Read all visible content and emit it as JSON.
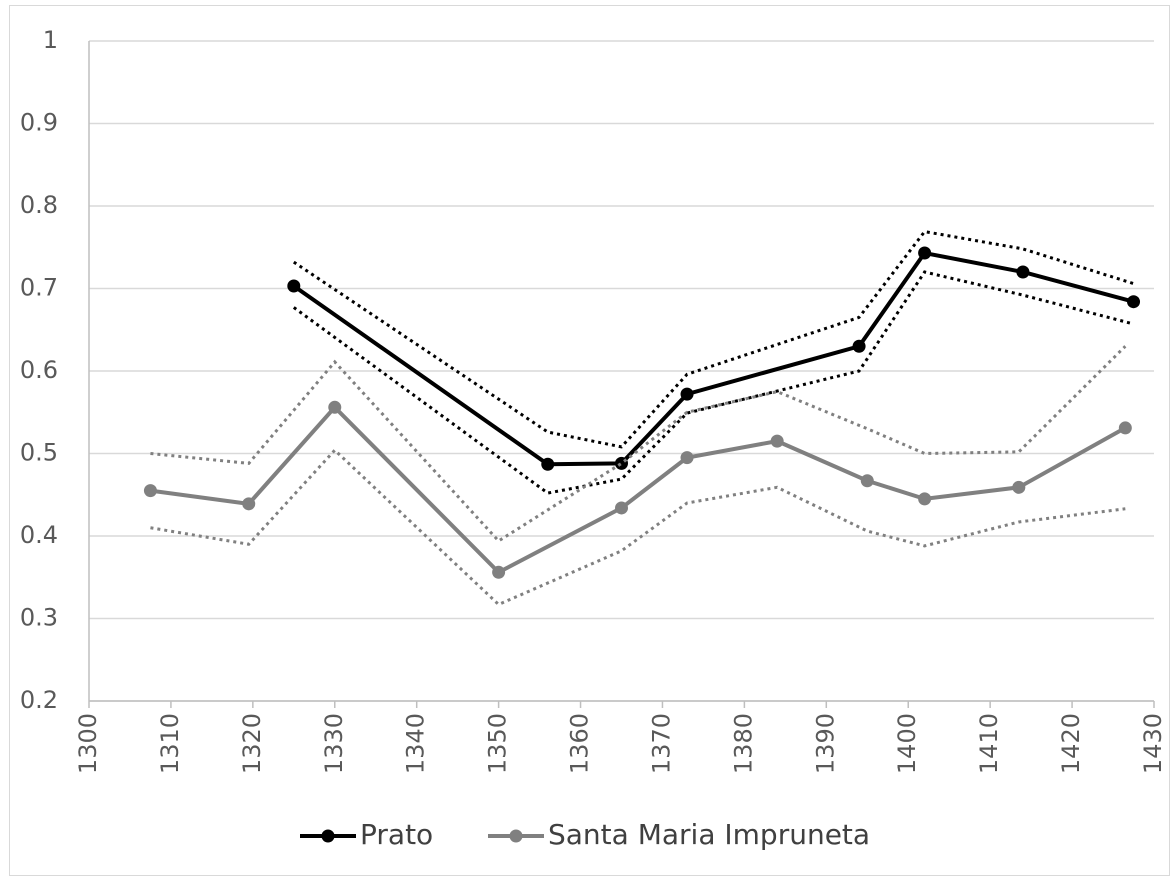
{
  "chart_data": {
    "type": "line",
    "xlim": [
      1300,
      1430
    ],
    "xticks": [
      1300,
      1310,
      1320,
      1330,
      1340,
      1350,
      1360,
      1370,
      1380,
      1390,
      1400,
      1410,
      1420,
      1430
    ],
    "ylim": [
      0.2,
      1
    ],
    "yticks": [
      0.2,
      0.3,
      0.4,
      0.5,
      0.6,
      0.7,
      0.8,
      0.9,
      1
    ],
    "grid": true,
    "legend": "bottom",
    "series": [
      {
        "name": "Prato",
        "color": "#000000",
        "x": [
          1325,
          1356,
          1365,
          1373,
          1394,
          1402,
          1414,
          1427.5
        ],
        "values": [
          0.703,
          0.487,
          0.488,
          0.572,
          0.63,
          0.743,
          0.72,
          0.684
        ],
        "upper": [
          0.732,
          0.526,
          0.508,
          0.596,
          0.665,
          0.769,
          0.748,
          0.706
        ],
        "lower": [
          0.677,
          0.452,
          0.469,
          0.549,
          0.6,
          0.72,
          0.692,
          0.657
        ]
      },
      {
        "name": "Santa Maria Impruneta",
        "color": "#808080",
        "x": [
          1307.5,
          1319.5,
          1330,
          1350,
          1365,
          1373,
          1384,
          1395,
          1402,
          1413.5,
          1426.5
        ],
        "values": [
          0.455,
          0.439,
          0.556,
          0.356,
          0.434,
          0.495,
          0.515,
          0.467,
          0.445,
          0.459,
          0.531
        ],
        "upper": [
          0.5,
          0.488,
          0.611,
          0.394,
          0.488,
          0.55,
          0.575,
          0.53,
          0.5,
          0.502,
          0.63
        ],
        "lower": [
          0.41,
          0.39,
          0.504,
          0.317,
          0.382,
          0.44,
          0.459,
          0.406,
          0.388,
          0.417,
          0.433
        ]
      }
    ]
  }
}
